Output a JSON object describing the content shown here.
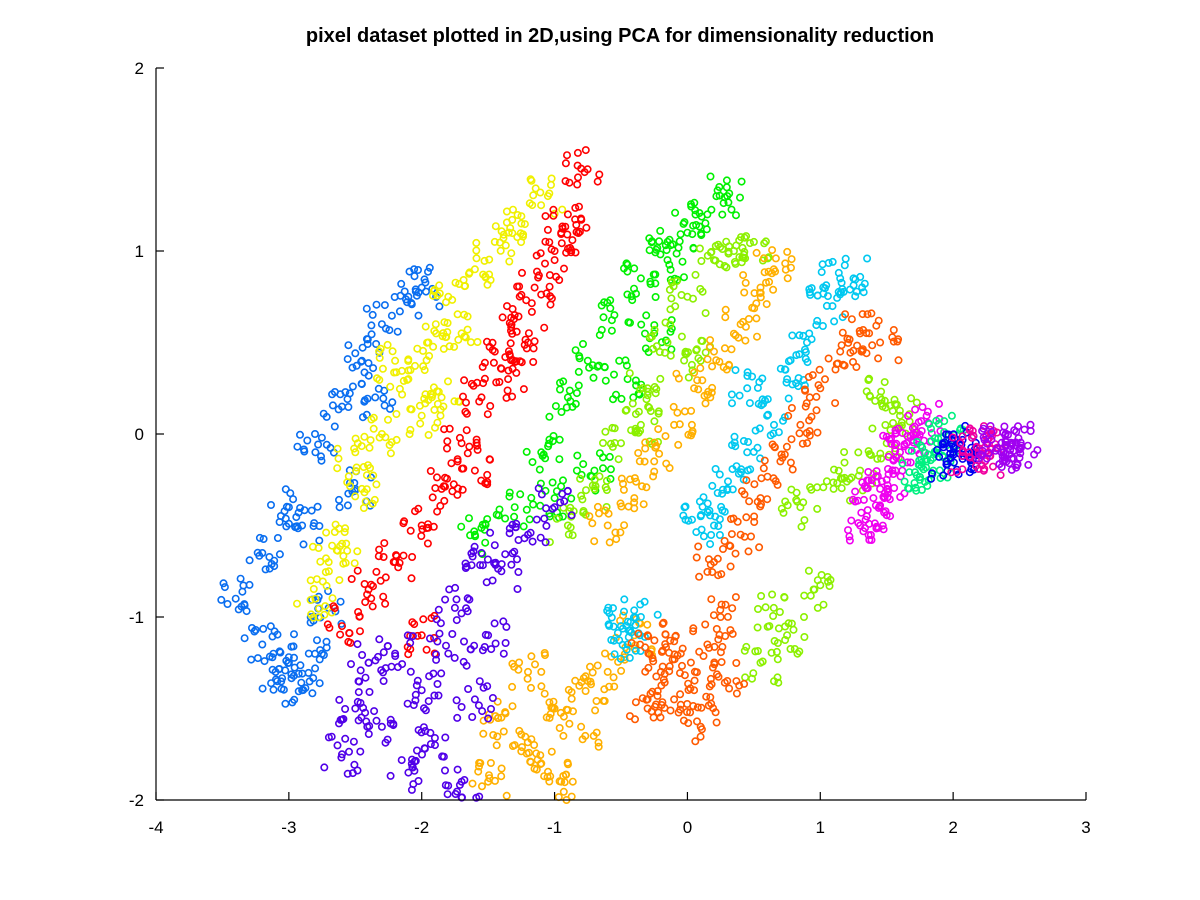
{
  "chart_data": {
    "type": "scatter",
    "title": "pixel dataset plotted in 2D,using PCA for dimensionality reduction",
    "xlabel": "",
    "ylabel": "",
    "xlim": [
      -4,
      3
    ],
    "ylim": [
      -2,
      2
    ],
    "xticks": [
      -4,
      -3,
      -2,
      -1,
      0,
      1,
      2,
      3
    ],
    "yticks": [
      -2,
      -1,
      0,
      1,
      2
    ],
    "xtick_labels": [
      "-4",
      "-3",
      "-2",
      "-1",
      "0",
      "1",
      "2",
      "3"
    ],
    "ytick_labels": [
      "-2",
      "-1",
      "0",
      "1",
      "2"
    ],
    "grid": false,
    "legend": "none",
    "marker": "open-circle",
    "series": [
      {
        "color": "#0a6ef0",
        "points": [
          [
            -3.4,
            -0.9
          ],
          [
            -3.2,
            -0.65
          ],
          [
            -3.0,
            -0.4
          ],
          [
            -2.8,
            -0.1
          ],
          [
            -2.6,
            0.15
          ],
          [
            -2.45,
            0.4
          ],
          [
            -2.3,
            0.6
          ],
          [
            -2.1,
            0.75
          ],
          [
            -2.0,
            0.8
          ],
          [
            -3.2,
            -1.15
          ],
          [
            -3.0,
            -1.25
          ],
          [
            -2.9,
            -1.4
          ],
          [
            -2.85,
            -1.2
          ],
          [
            -3.1,
            -1.3
          ],
          [
            -2.7,
            -0.95
          ],
          [
            -2.5,
            -0.3
          ],
          [
            -2.9,
            -0.5
          ],
          [
            -2.35,
            0.2
          ]
        ]
      },
      {
        "color": "#f0f000",
        "points": [
          [
            -2.8,
            -0.9
          ],
          [
            -2.6,
            -0.6
          ],
          [
            -2.45,
            -0.3
          ],
          [
            -2.3,
            0.0
          ],
          [
            -2.1,
            0.3
          ],
          [
            -1.95,
            0.5
          ],
          [
            -1.8,
            0.75
          ],
          [
            -1.6,
            0.9
          ],
          [
            -1.45,
            1.05
          ],
          [
            -1.25,
            1.15
          ],
          [
            -1.05,
            1.3
          ],
          [
            -2.5,
            -0.1
          ],
          [
            -2.2,
            0.4
          ],
          [
            -1.85,
            0.2
          ],
          [
            -2.0,
            0.1
          ],
          [
            -1.7,
            0.55
          ],
          [
            -2.7,
            -0.7
          ]
        ]
      },
      {
        "color": "#ff0000",
        "points": [
          [
            -2.4,
            -0.85
          ],
          [
            -2.2,
            -0.7
          ],
          [
            -2.0,
            -0.5
          ],
          [
            -1.85,
            -0.3
          ],
          [
            -1.7,
            -0.05
          ],
          [
            -1.55,
            0.2
          ],
          [
            -1.45,
            0.45
          ],
          [
            -1.3,
            0.65
          ],
          [
            -1.15,
            0.8
          ],
          [
            -1.0,
            0.95
          ],
          [
            -0.95,
            1.1
          ],
          [
            -1.35,
            0.3
          ],
          [
            -1.6,
            -0.2
          ],
          [
            -1.2,
            0.5
          ],
          [
            -2.0,
            -1.1
          ],
          [
            -2.6,
            -1.05
          ],
          [
            -0.8,
            1.45
          ],
          [
            -0.9,
            1.2
          ]
        ]
      },
      {
        "color": "#00f000",
        "points": [
          [
            -1.6,
            -0.55
          ],
          [
            -1.3,
            -0.4
          ],
          [
            -1.1,
            -0.1
          ],
          [
            -0.9,
            0.2
          ],
          [
            -0.75,
            0.4
          ],
          [
            -0.55,
            0.65
          ],
          [
            -0.35,
            0.85
          ],
          [
            -0.15,
            0.95
          ],
          [
            0.0,
            1.1
          ],
          [
            0.15,
            1.2
          ],
          [
            -0.45,
            0.3
          ],
          [
            -0.7,
            -0.2
          ],
          [
            -0.25,
            0.55
          ],
          [
            -1.0,
            -0.35
          ],
          [
            0.3,
            1.3
          ],
          [
            -0.15,
            1.05
          ]
        ]
      },
      {
        "color": "#8cf000",
        "points": [
          [
            -0.9,
            -0.5
          ],
          [
            -0.7,
            -0.3
          ],
          [
            -0.5,
            -0.05
          ],
          [
            -0.3,
            0.25
          ],
          [
            -0.15,
            0.5
          ],
          [
            0.0,
            0.75
          ],
          [
            0.2,
            0.95
          ],
          [
            0.35,
            1.0
          ],
          [
            0.5,
            1.05
          ],
          [
            -0.35,
            0.05
          ],
          [
            0.1,
            0.4
          ],
          [
            0.85,
            -0.4
          ],
          [
            1.1,
            -0.3
          ],
          [
            1.3,
            -0.2
          ],
          [
            1.5,
            -0.05
          ],
          [
            1.6,
            0.1
          ],
          [
            1.45,
            0.2
          ],
          [
            0.65,
            -0.95
          ],
          [
            0.75,
            -1.1
          ],
          [
            0.95,
            -0.85
          ],
          [
            0.55,
            -1.25
          ]
        ]
      },
      {
        "color": "#ffb000",
        "points": [
          [
            -0.6,
            -0.5
          ],
          [
            -0.4,
            -0.35
          ],
          [
            -0.25,
            -0.15
          ],
          [
            -0.1,
            0.05
          ],
          [
            0.05,
            0.25
          ],
          [
            0.2,
            0.45
          ],
          [
            0.4,
            0.6
          ],
          [
            0.55,
            0.8
          ],
          [
            0.65,
            0.9
          ],
          [
            -1.2,
            -1.3
          ],
          [
            -1.0,
            -1.5
          ],
          [
            -1.3,
            -1.7
          ],
          [
            -1.1,
            -1.8
          ],
          [
            -0.8,
            -1.6
          ],
          [
            -0.6,
            -1.3
          ],
          [
            -0.4,
            -1.1
          ],
          [
            -1.5,
            -1.9
          ],
          [
            -0.95,
            -1.9
          ],
          [
            -1.4,
            -1.55
          ],
          [
            -0.75,
            -1.35
          ]
        ]
      },
      {
        "color": "#00c8f0",
        "points": [
          [
            0.1,
            -0.45
          ],
          [
            0.3,
            -0.3
          ],
          [
            0.45,
            -0.1
          ],
          [
            0.6,
            0.1
          ],
          [
            0.75,
            0.3
          ],
          [
            0.9,
            0.5
          ],
          [
            1.05,
            0.7
          ],
          [
            1.15,
            0.85
          ],
          [
            1.25,
            0.85
          ],
          [
            0.45,
            0.25
          ],
          [
            -0.5,
            -1.05
          ],
          [
            -0.45,
            -1.15
          ],
          [
            -0.35,
            -1.0
          ],
          [
            0.2,
            -0.5
          ]
        ]
      },
      {
        "color": "#ff5a00",
        "points": [
          [
            0.2,
            -0.7
          ],
          [
            0.4,
            -0.55
          ],
          [
            0.55,
            -0.35
          ],
          [
            0.7,
            -0.15
          ],
          [
            0.85,
            0.05
          ],
          [
            1.0,
            0.25
          ],
          [
            1.15,
            0.45
          ],
          [
            1.3,
            0.55
          ],
          [
            1.45,
            0.5
          ],
          [
            -0.2,
            -1.3
          ],
          [
            -0.1,
            -1.45
          ],
          [
            0.05,
            -1.4
          ],
          [
            0.15,
            -1.15
          ],
          [
            0.25,
            -1.0
          ],
          [
            -0.3,
            -1.1
          ],
          [
            -0.3,
            -1.5
          ],
          [
            0.1,
            -1.6
          ],
          [
            0.3,
            -1.35
          ],
          [
            -0.05,
            -1.2
          ]
        ]
      },
      {
        "color": "#5000e8",
        "points": [
          [
            -2.2,
            -1.2
          ],
          [
            -2.0,
            -1.4
          ],
          [
            -2.3,
            -1.6
          ],
          [
            -1.9,
            -1.7
          ],
          [
            -1.7,
            -1.9
          ],
          [
            -2.5,
            -1.5
          ],
          [
            -1.8,
            -1.2
          ],
          [
            -1.6,
            -1.45
          ],
          [
            -1.5,
            -1.1
          ],
          [
            -2.1,
            -1.85
          ],
          [
            -1.4,
            -0.75
          ],
          [
            -1.2,
            -0.55
          ],
          [
            -1.0,
            -0.4
          ],
          [
            -2.6,
            -1.75
          ],
          [
            -2.4,
            -1.25
          ],
          [
            -1.55,
            -0.65
          ],
          [
            -1.75,
            -0.95
          ]
        ]
      },
      {
        "color": "#f000f0",
        "points": [
          [
            1.3,
            -0.5
          ],
          [
            1.4,
            -0.35
          ],
          [
            1.5,
            -0.25
          ],
          [
            1.6,
            -0.1
          ],
          [
            1.7,
            0.0
          ],
          [
            1.8,
            0.1
          ],
          [
            1.45,
            -0.3
          ],
          [
            1.35,
            -0.45
          ],
          [
            1.65,
            -0.05
          ]
        ]
      },
      {
        "color": "#00f080",
        "points": [
          [
            1.75,
            -0.25
          ],
          [
            1.8,
            -0.15
          ],
          [
            1.88,
            -0.05
          ],
          [
            1.95,
            0.0
          ],
          [
            1.85,
            -0.2
          ]
        ]
      },
      {
        "color": "#0000f0",
        "points": [
          [
            1.95,
            -0.15
          ],
          [
            2.0,
            -0.1
          ],
          [
            2.05,
            -0.05
          ],
          [
            2.08,
            -0.12
          ]
        ]
      },
      {
        "color": "#f000a0",
        "points": [
          [
            2.12,
            -0.1
          ],
          [
            2.2,
            -0.08
          ],
          [
            2.25,
            -0.05
          ],
          [
            2.28,
            -0.12
          ]
        ]
      },
      {
        "color": "#a000f0",
        "points": [
          [
            2.33,
            -0.08
          ],
          [
            2.4,
            -0.06
          ],
          [
            2.45,
            -0.05
          ],
          [
            2.5,
            -0.08
          ],
          [
            2.38,
            -0.1
          ]
        ]
      }
    ]
  }
}
